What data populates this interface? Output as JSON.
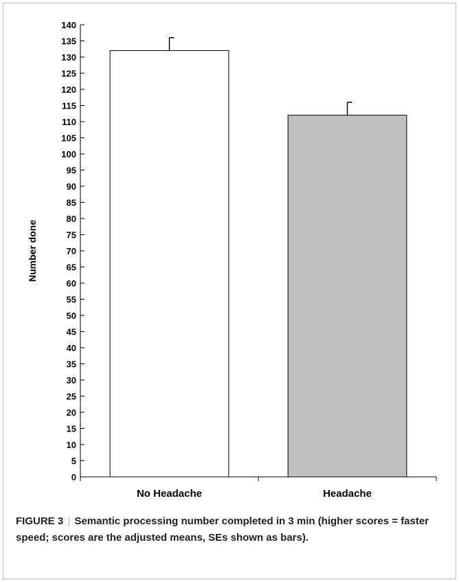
{
  "chart_data": {
    "type": "bar",
    "categories": [
      "No Headache",
      "Headache"
    ],
    "values": [
      132,
      112
    ],
    "errors": [
      4,
      4
    ],
    "colors": [
      "#ffffff",
      "#c0c0c0"
    ],
    "ylabel": "Number done",
    "xlabel": "",
    "ylim": [
      0,
      140
    ],
    "ytick_step": 5,
    "grid": false,
    "legend": "none"
  },
  "caption": {
    "label": "FIGURE 3",
    "separator": "|",
    "text": "Semantic processing number completed in 3 min (higher scores = faster speed; scores are the adjusted means, SEs shown as bars)."
  }
}
